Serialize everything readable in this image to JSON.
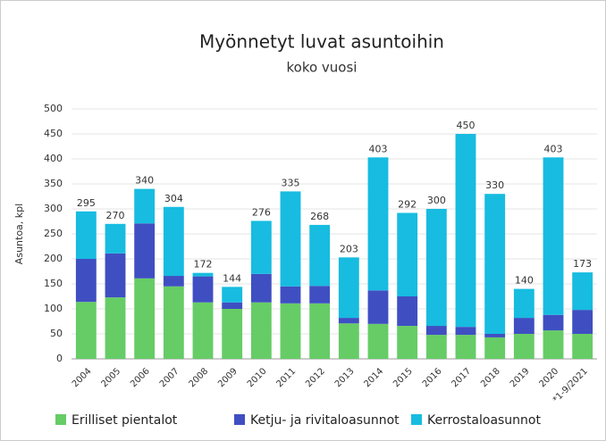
{
  "chart_data": {
    "type": "stacked_bar",
    "title": "Myönnetyt luvat asuntoihin",
    "subtitle": "koko vuosi",
    "ylabel": "Asuntoa, kpl",
    "categories": [
      "2004",
      "2005",
      "2006",
      "2007",
      "2008",
      "2009",
      "2010",
      "2011",
      "2012",
      "2013",
      "2014",
      "2015",
      "2016",
      "2017",
      "2018",
      "2019",
      "2020",
      "*1-9/2021"
    ],
    "series": [
      {
        "name": "Erilliset pientalot",
        "color": "#66cc66",
        "values": [
          114,
          123,
          161,
          145,
          113,
          100,
          113,
          111,
          111,
          71,
          70,
          66,
          48,
          48,
          43,
          50,
          57,
          50
        ]
      },
      {
        "name": "Ketju- ja rivitaloasunnot",
        "color": "#3f4fc2",
        "values": [
          86,
          88,
          110,
          21,
          52,
          13,
          57,
          34,
          35,
          11,
          67,
          59,
          18,
          16,
          7,
          32,
          31,
          48
        ]
      },
      {
        "name": "Kerrostaloasunnot",
        "color": "#17bce0",
        "values": [
          95,
          59,
          69,
          138,
          7,
          31,
          106,
          190,
          122,
          121,
          266,
          167,
          234,
          386,
          280,
          58,
          315,
          75
        ]
      }
    ],
    "totals": [
      295,
      270,
      340,
      304,
      172,
      144,
      276,
      335,
      268,
      203,
      403,
      292,
      300,
      450,
      330,
      140,
      403,
      173
    ],
    "ylim": [
      0,
      500
    ],
    "yticks": [
      0,
      50,
      100,
      150,
      200,
      250,
      300,
      350,
      400,
      450,
      500
    ],
    "grid": true,
    "legend": "bottom"
  }
}
